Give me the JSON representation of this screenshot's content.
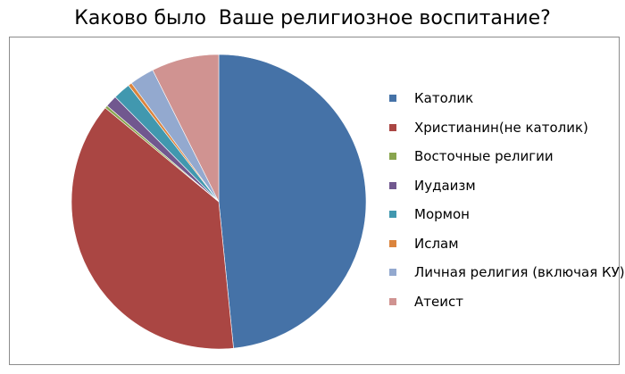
{
  "chart_data": {
    "type": "pie",
    "title": "Каково было  Ваше религиозное воспитание?",
    "legend_position": "right",
    "slices": [
      {
        "label": "Католик",
        "value": 48.4,
        "color": "#4572A7"
      },
      {
        "label": "Христианин(не католик)",
        "value": 37.6,
        "color": "#AA4643"
      },
      {
        "label": "Восточные религии",
        "value": 0.3,
        "color": "#89A54E"
      },
      {
        "label": "Иудаизм",
        "value": 1.3,
        "color": "#71588F"
      },
      {
        "label": "Мормон",
        "value": 1.9,
        "color": "#4198AF"
      },
      {
        "label": "Ислам",
        "value": 0.4,
        "color": "#DB843D"
      },
      {
        "label": "Личная религия (включая КУ)",
        "value": 2.7,
        "color": "#93A9CF"
      },
      {
        "label": "Атеист",
        "value": 7.4,
        "color": "#D09391"
      }
    ]
  }
}
